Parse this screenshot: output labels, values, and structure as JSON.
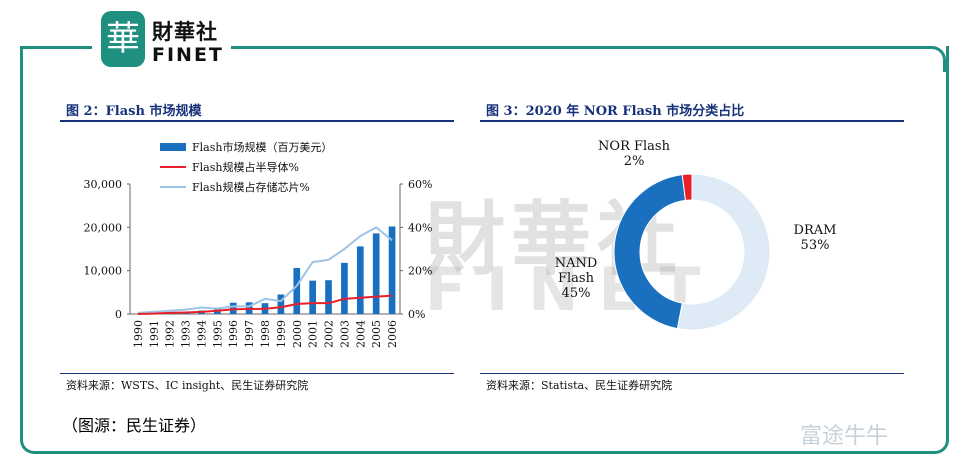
{
  "header": {
    "logo_glyph": "華",
    "brand_cn": "財華社",
    "brand_en": "FINET"
  },
  "watermark": {
    "cn": "財華社",
    "en": "FINET"
  },
  "figure2": {
    "title": "图 2：Flash 市场规模",
    "source": "资料来源：WSTS、IC insight、民生证券研究院"
  },
  "figure3": {
    "title": "图 3：2020 年 NOR Flash 市场分类占比",
    "source": "资料来源：Statista、民生证券研究院"
  },
  "caption": "（图源：民生证券）",
  "footer_brand": "富途牛牛",
  "colors": {
    "frame": "#1f8f80",
    "title": "#17327a",
    "bar": "#1a6fbf",
    "red_line": "#e8202a",
    "light_line": "#9dc3e6",
    "pie_dram": "#deeaf6",
    "pie_nand": "#1a6fbf",
    "pie_nor": "#e8202a"
  },
  "chart_data": [
    {
      "type": "bar",
      "categories": [
        "1990",
        "1991",
        "1992",
        "1993",
        "1994",
        "1995",
        "1996",
        "1997",
        "1998",
        "1999",
        "2000",
        "2001",
        "2002",
        "2003",
        "2004",
        "2005",
        "2006"
      ],
      "series": [
        {
          "name": "Flash市场规模（百万美元）",
          "type": "bar",
          "axis": "left",
          "values": [
            0,
            150,
            300,
            400,
            800,
            1500,
            2600,
            2700,
            2500,
            4500,
            10600,
            7700,
            7800,
            11800,
            15600,
            18600,
            20200
          ]
        },
        {
          "name": "Flash规模占半导体%",
          "type": "line",
          "axis": "right",
          "values": [
            0,
            0.2,
            0.5,
            0.7,
            1,
            1.5,
            2.2,
            2.3,
            2.4,
            3.1,
            4.6,
            5,
            5,
            7,
            7.5,
            8,
            8.5
          ]
        },
        {
          "name": "Flash规模占存储芯片%",
          "type": "line",
          "axis": "right",
          "values": [
            0.5,
            1,
            1.5,
            2,
            3,
            2.5,
            3.5,
            3.5,
            7,
            6,
            13,
            24,
            25,
            30,
            36,
            40,
            34
          ]
        }
      ],
      "y_left": {
        "ticks": [
          "0",
          "10,000",
          "20,000",
          "30,000"
        ],
        "ylim": [
          0,
          30000
        ]
      },
      "y_right": {
        "ticks": [
          "0%",
          "20%",
          "40%",
          "60%"
        ],
        "ylim": [
          0,
          60
        ]
      },
      "legend_position": "top-left"
    },
    {
      "type": "pie",
      "donut": true,
      "slices": [
        {
          "label": "DRAM",
          "value": 53,
          "value_label": "53%"
        },
        {
          "label": "NAND Flash",
          "value": 45,
          "value_label": "45%"
        },
        {
          "label": "NOR Flash",
          "value": 2,
          "value_label": "2%"
        }
      ]
    }
  ]
}
